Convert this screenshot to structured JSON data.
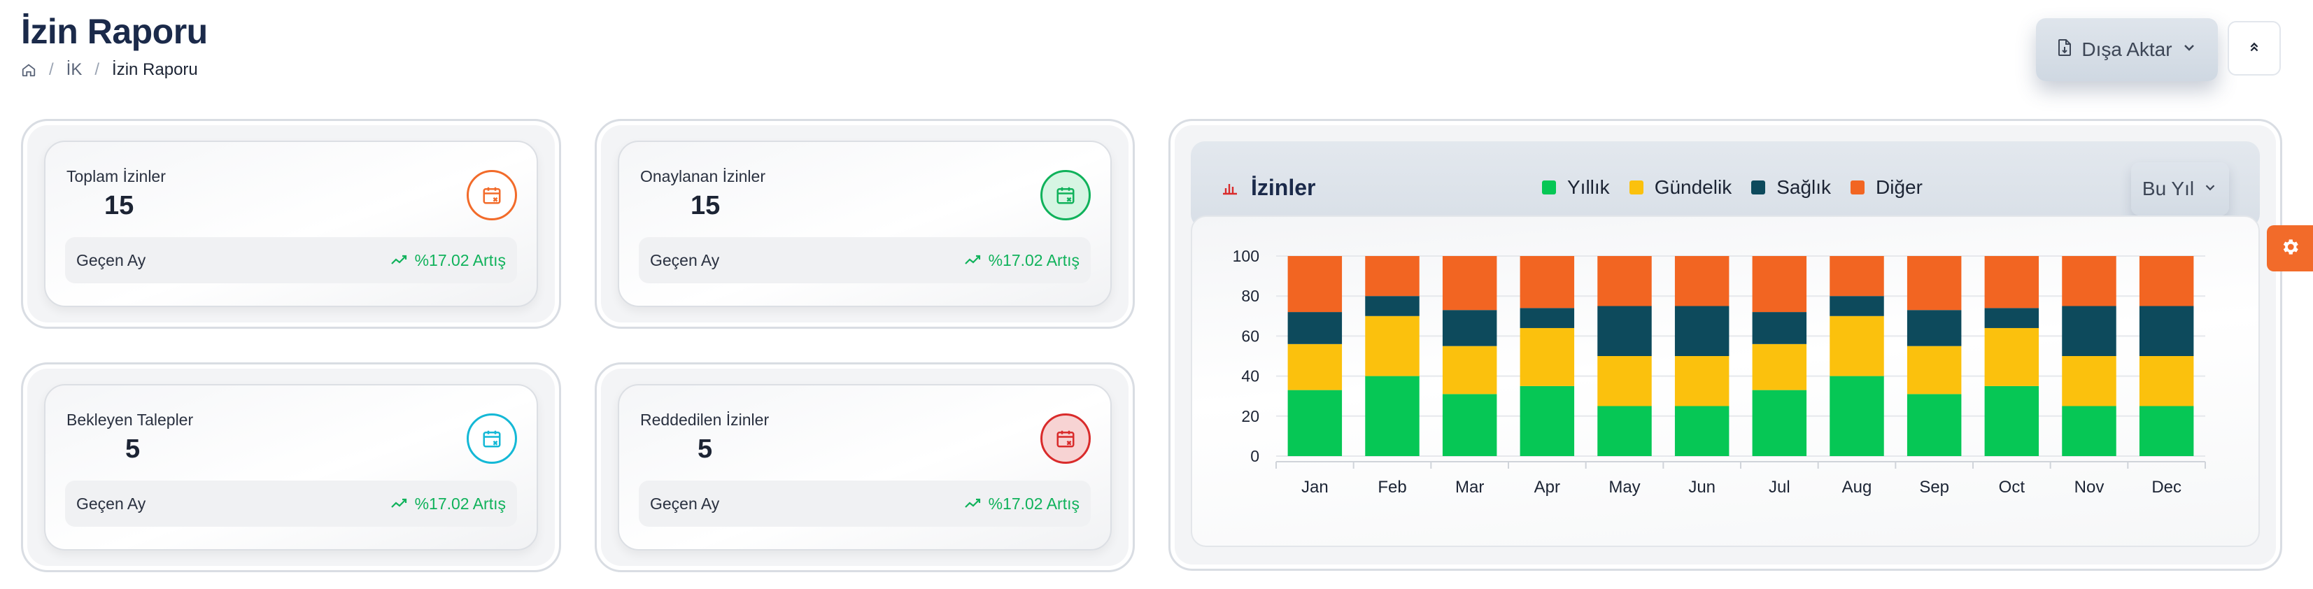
{
  "page": {
    "title": "İzin Raporu",
    "breadcrumb": [
      "İK",
      "İzin Raporu"
    ]
  },
  "toolbar": {
    "export_label": "Dışa Aktar"
  },
  "stats": [
    {
      "label": "Toplam İzinler",
      "value": "15",
      "period": "Geçen Ay",
      "trend": "%17.02 Artış",
      "icon": "calendar-x-icon",
      "color": "#f26b2a",
      "bg": "#ffffff"
    },
    {
      "label": "Onaylanan İzinler",
      "value": "15",
      "period": "Geçen Ay",
      "trend": "%17.02 Artış",
      "icon": "calendar-x-icon",
      "color": "#10b25b",
      "bg": "#d6f5e3"
    },
    {
      "label": "Bekleyen Talepler",
      "value": "5",
      "period": "Geçen Ay",
      "trend": "%17.02 Artış",
      "icon": "calendar-x-icon",
      "color": "#14b8d6",
      "bg": "#ffffff"
    },
    {
      "label": "Reddedilen İzinler",
      "value": "5",
      "period": "Geçen Ay",
      "trend": "%17.02 Artış",
      "icon": "calendar-x-icon",
      "color": "#d92b2b",
      "bg": "#f7d3d3"
    }
  ],
  "chart_panel": {
    "title": "İzinler",
    "period_select": "Bu Yıl"
  },
  "chart_data": {
    "type": "bar",
    "stacked": true,
    "categories": [
      "Jan",
      "Feb",
      "Mar",
      "Apr",
      "May",
      "Jun",
      "Jul",
      "Aug",
      "Sep",
      "Oct",
      "Nov",
      "Dec"
    ],
    "ylim": [
      0,
      100
    ],
    "yticks": [
      0,
      20,
      40,
      60,
      80,
      100
    ],
    "grid": true,
    "legend_position": "top",
    "series": [
      {
        "name": "Yıllık",
        "color": "#06c755",
        "values": [
          33,
          40,
          31,
          35,
          25,
          25,
          33,
          40,
          31,
          35,
          25,
          25
        ]
      },
      {
        "name": "Gündelik",
        "color": "#fbc10d",
        "values": [
          23,
          30,
          24,
          29,
          25,
          25,
          23,
          30,
          24,
          29,
          25,
          25
        ]
      },
      {
        "name": "Sağlık",
        "color": "#0d4a5c",
        "values": [
          16,
          10,
          18,
          10,
          25,
          25,
          16,
          10,
          18,
          10,
          25,
          25
        ]
      },
      {
        "name": "Diğer",
        "color": "#f26522",
        "values": [
          28,
          20,
          27,
          26,
          25,
          25,
          28,
          20,
          27,
          26,
          25,
          25
        ]
      }
    ]
  }
}
